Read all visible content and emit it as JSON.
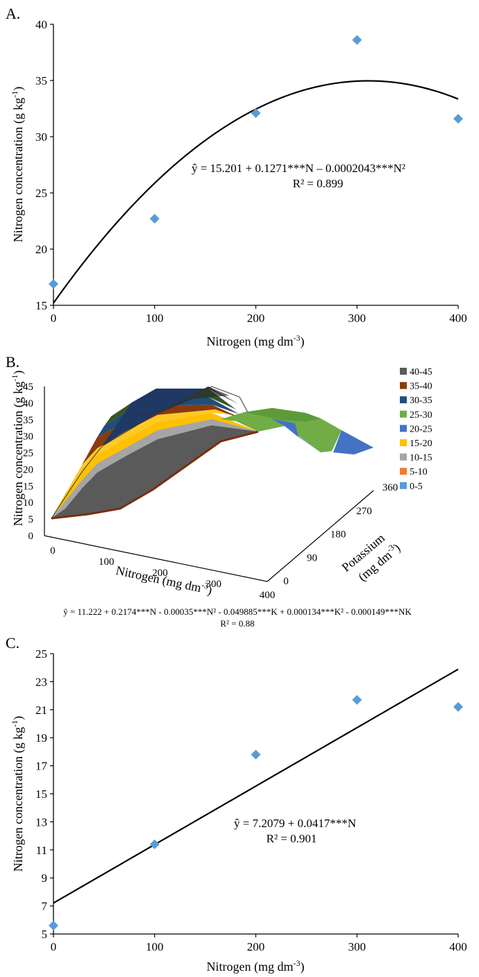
{
  "chart_data": [
    {
      "id": "A",
      "type": "scatter",
      "panel_label": "A.",
      "xlabel": "Nitrogen (mg dm",
      "xlabel_sup": "-3",
      "xlabel_end": ")",
      "ylabel": "Nitrogen concentration (g kg",
      "ylabel_sup": "-1",
      "ylabel_end": ")",
      "xlim": [
        0,
        400
      ],
      "ylim": [
        15,
        40
      ],
      "xticks": [
        0,
        100,
        200,
        300,
        400
      ],
      "yticks": [
        15,
        20,
        25,
        30,
        35,
        40
      ],
      "points": {
        "x": [
          0,
          100,
          200,
          300,
          400
        ],
        "y": [
          16.9,
          22.7,
          32.1,
          38.6,
          31.6
        ]
      },
      "marker_color": "#5b9bd5",
      "fit": {
        "type": "quadratic",
        "coef": [
          15.201,
          0.1271,
          -0.0002043
        ]
      },
      "equation": "ŷ = 15.201 + 0.1271***N – 0.0002043***N²",
      "r2": "R² = 0.899"
    },
    {
      "id": "B",
      "type": "surface",
      "panel_label": "B.",
      "xlabel": "Nitrogen (mg dm",
      "xlabel_sup": "-3",
      "xlabel_end": ")",
      "ylabel": "Nitrogen concentration (g kg",
      "ylabel_sup": "-1",
      "ylabel_end": ")",
      "zlabel_line1": "Potassium",
      "zlabel_line2": "(mg dm",
      "zlabel_sup": "-3",
      "zlabel_end": ")",
      "xticks": [
        0,
        100,
        200,
        300,
        400
      ],
      "yticks": [
        0,
        5,
        10,
        15,
        20,
        25,
        30,
        35,
        40,
        45
      ],
      "kticks": [
        0,
        90,
        180,
        270,
        360
      ],
      "legend": [
        {
          "label": "40-45",
          "color": "#5a5a5a"
        },
        {
          "label": "35-40",
          "color": "#8b3a0e"
        },
        {
          "label": "30-35",
          "color": "#1f4e79"
        },
        {
          "label": "25-30",
          "color": "#70ad47"
        },
        {
          "label": "20-25",
          "color": "#4472c4"
        },
        {
          "label": "15-20",
          "color": "#ffc000"
        },
        {
          "label": "10-15",
          "color": "#a5a5a5"
        },
        {
          "label": "5-10",
          "color": "#ed7d31"
        },
        {
          "label": "0-5",
          "color": "#5b9bd5"
        }
      ],
      "equation": "ŷ = 11.222 + 0.2174***N - 0.00035***N² - 0.049885***K + 0.000134***K² - 0.000149***NK",
      "r2": "R² = 0.88"
    },
    {
      "id": "C",
      "type": "scatter",
      "panel_label": "C.",
      "xlabel": "Nitrogen (mg dm",
      "xlabel_sup": "-3",
      "xlabel_end": ")",
      "ylabel": "Nitrogen concentration (g kg",
      "ylabel_sup": "-1",
      "ylabel_end": ")",
      "xlim": [
        0,
        400
      ],
      "ylim": [
        5,
        25
      ],
      "xticks": [
        0,
        100,
        200,
        300,
        400
      ],
      "yticks": [
        5,
        7,
        9,
        11,
        13,
        15,
        17,
        19,
        21,
        23,
        25
      ],
      "points": {
        "x": [
          0,
          100,
          200,
          300,
          400
        ],
        "y": [
          5.6,
          11.4,
          17.8,
          21.7,
          21.2
        ]
      },
      "marker_color": "#5b9bd5",
      "fit": {
        "type": "linear",
        "coef": [
          7.2079,
          0.0417
        ]
      },
      "equation": "ŷ = 7.2079 + 0.0417***N",
      "r2": "R² = 0.901"
    }
  ]
}
